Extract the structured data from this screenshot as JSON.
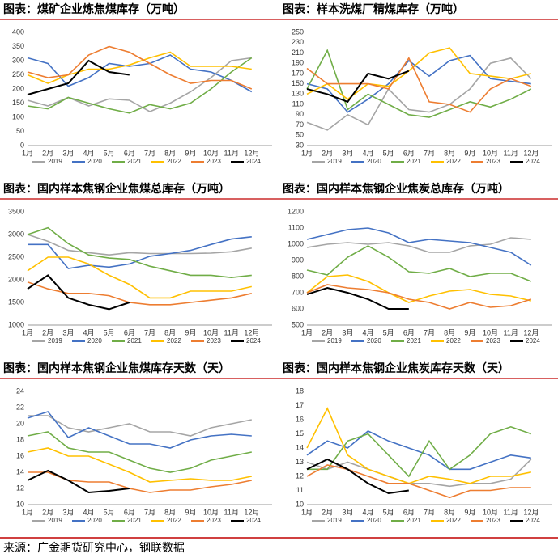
{
  "chart_data": [
    {
      "type": "line",
      "title": "图表：煤矿企业炼焦煤库存（万吨）",
      "categories": [
        "1月",
        "2月",
        "3月",
        "4月",
        "5月",
        "6月",
        "7月",
        "8月",
        "9月",
        "10月",
        "11月",
        "12月"
      ],
      "ylim": [
        0,
        400
      ],
      "yticks": [
        0,
        50,
        100,
        150,
        200,
        250,
        300,
        350,
        400
      ],
      "grid": false,
      "series": [
        {
          "name": "2019",
          "color": "#a5a5a5",
          "values": [
            160,
            140,
            170,
            140,
            165,
            160,
            120,
            150,
            190,
            240,
            300,
            310
          ]
        },
        {
          "name": "2020",
          "color": "#4472c4",
          "values": [
            310,
            290,
            210,
            240,
            290,
            280,
            290,
            320,
            270,
            260,
            230,
            190
          ]
        },
        {
          "name": "2021",
          "color": "#70ad47",
          "values": [
            140,
            130,
            170,
            150,
            130,
            115,
            145,
            130,
            150,
            200,
            260,
            310
          ]
        },
        {
          "name": "2022",
          "color": "#ffc000",
          "values": [
            250,
            220,
            250,
            270,
            270,
            285,
            310,
            330,
            280,
            280,
            280,
            270
          ]
        },
        {
          "name": "2023",
          "color": "#ed7d31",
          "values": [
            260,
            240,
            250,
            320,
            350,
            330,
            290,
            250,
            220,
            230,
            230,
            200
          ]
        },
        {
          "name": "2024",
          "color": "#000000",
          "values": [
            180,
            200,
            220,
            300,
            260,
            250,
            null,
            null,
            null,
            null,
            null,
            null
          ]
        }
      ]
    },
    {
      "type": "line",
      "title": "图表：样本洗煤厂精煤库存（万吨）",
      "categories": [
        "1月",
        "2月",
        "3月",
        "4月",
        "5月",
        "6月",
        "7月",
        "8月",
        "9月",
        "10月",
        "11月",
        "12月"
      ],
      "ylim": [
        30,
        250
      ],
      "yticks": [
        30,
        50,
        70,
        90,
        110,
        130,
        150,
        170,
        190,
        210,
        230,
        250
      ],
      "grid": false,
      "series": [
        {
          "name": "2019",
          "color": "#a5a5a5",
          "values": [
            75,
            60,
            90,
            70,
            140,
            100,
            95,
            110,
            140,
            190,
            200,
            160
          ]
        },
        {
          "name": "2020",
          "color": "#4472c4",
          "values": [
            150,
            140,
            95,
            120,
            150,
            195,
            165,
            195,
            205,
            160,
            155,
            150
          ]
        },
        {
          "name": "2021",
          "color": "#70ad47",
          "values": [
            140,
            215,
            100,
            130,
            110,
            90,
            85,
            100,
            115,
            105,
            120,
            140
          ]
        },
        {
          "name": "2022",
          "color": "#ffc000",
          "values": [
            130,
            150,
            120,
            150,
            145,
            175,
            210,
            220,
            170,
            165,
            160,
            170
          ]
        },
        {
          "name": "2023",
          "color": "#ed7d31",
          "values": [
            180,
            150,
            150,
            150,
            140,
            200,
            115,
            110,
            95,
            140,
            160,
            145
          ]
        },
        {
          "name": "2024",
          "color": "#000000",
          "values": [
            140,
            130,
            115,
            170,
            160,
            175,
            null,
            null,
            null,
            null,
            null,
            null
          ]
        }
      ]
    },
    {
      "type": "line",
      "title": "图表：国内样本焦钢企业焦煤总库存（万吨）",
      "categories": [
        "1月",
        "2月",
        "3月",
        "4月",
        "5月",
        "6月",
        "7月",
        "8月",
        "9月",
        "10月",
        "11月",
        "12月"
      ],
      "ylim": [
        1000,
        3500
      ],
      "yticks": [
        1000,
        1500,
        2000,
        2500,
        3000,
        3500
      ],
      "grid": false,
      "series": [
        {
          "name": "2019",
          "color": "#a5a5a5",
          "values": [
            3000,
            2850,
            2650,
            2600,
            2550,
            2600,
            2580,
            2580,
            2580,
            2590,
            2620,
            2700
          ]
        },
        {
          "name": "2020",
          "color": "#4472c4",
          "values": [
            2780,
            2780,
            2250,
            2320,
            2280,
            2350,
            2520,
            2580,
            2650,
            2780,
            2900,
            2950
          ]
        },
        {
          "name": "2021",
          "color": "#70ad47",
          "values": [
            3000,
            3150,
            2800,
            2550,
            2480,
            2450,
            2300,
            2200,
            2100,
            2100,
            2050,
            2100
          ]
        },
        {
          "name": "2022",
          "color": "#ffc000",
          "values": [
            2200,
            2500,
            2500,
            2350,
            2100,
            1900,
            1600,
            1600,
            1750,
            1750,
            1750,
            1850
          ]
        },
        {
          "name": "2023",
          "color": "#ed7d31",
          "values": [
            1950,
            1800,
            1700,
            1700,
            1650,
            1500,
            1450,
            1450,
            1500,
            1550,
            1600,
            1700
          ]
        },
        {
          "name": "2024",
          "color": "#000000",
          "values": [
            1800,
            2100,
            1600,
            1450,
            1350,
            1500,
            null,
            null,
            null,
            null,
            null,
            null
          ]
        }
      ]
    },
    {
      "type": "line",
      "title": "图表：国内样本焦钢企业焦炭总库存（万吨）",
      "categories": [
        "1月",
        "2月",
        "3月",
        "4月",
        "5月",
        "6月",
        "7月",
        "8月",
        "9月",
        "10月",
        "11月",
        "12月"
      ],
      "ylim": [
        500,
        1200
      ],
      "yticks": [
        500,
        600,
        700,
        800,
        900,
        1000,
        1100,
        1200
      ],
      "grid": false,
      "series": [
        {
          "name": "2019",
          "color": "#a5a5a5",
          "values": [
            980,
            1000,
            1010,
            1000,
            1010,
            990,
            950,
            950,
            990,
            1000,
            1040,
            1030
          ]
        },
        {
          "name": "2020",
          "color": "#4472c4",
          "values": [
            1030,
            1060,
            1090,
            1100,
            1070,
            1010,
            1030,
            1020,
            1010,
            980,
            950,
            870
          ]
        },
        {
          "name": "2021",
          "color": "#70ad47",
          "values": [
            840,
            810,
            920,
            990,
            920,
            830,
            820,
            850,
            800,
            820,
            820,
            770
          ]
        },
        {
          "name": "2022",
          "color": "#ffc000",
          "values": [
            700,
            800,
            810,
            770,
            700,
            640,
            680,
            710,
            720,
            690,
            680,
            650
          ]
        },
        {
          "name": "2023",
          "color": "#ed7d31",
          "values": [
            700,
            750,
            730,
            720,
            700,
            660,
            640,
            600,
            640,
            610,
            620,
            660
          ]
        },
        {
          "name": "2024",
          "color": "#000000",
          "values": [
            690,
            730,
            700,
            660,
            600,
            600,
            null,
            null,
            null,
            null,
            null,
            null
          ]
        }
      ]
    },
    {
      "type": "line",
      "title": "图表：国内样本焦钢企业焦煤库存天数（天）",
      "categories": [
        "1月",
        "2月",
        "3月",
        "4月",
        "5月",
        "6月",
        "7月",
        "8月",
        "9月",
        "10月",
        "11月",
        "12月"
      ],
      "ylim": [
        10,
        24
      ],
      "yticks": [
        10,
        12,
        14,
        16,
        18,
        20,
        22,
        24
      ],
      "grid": false,
      "series": [
        {
          "name": "2019",
          "color": "#a5a5a5",
          "values": [
            21,
            21,
            19.5,
            19,
            19.5,
            20,
            19,
            19,
            18.5,
            19.5,
            20,
            20.5
          ]
        },
        {
          "name": "2020",
          "color": "#4472c4",
          "values": [
            20.7,
            21.5,
            18.3,
            19.5,
            18.5,
            17.5,
            17.5,
            17,
            18,
            18.5,
            18.7,
            18.5
          ]
        },
        {
          "name": "2021",
          "color": "#70ad47",
          "values": [
            18.5,
            19,
            17,
            16.5,
            16.5,
            15.5,
            14.5,
            14,
            14.5,
            15.5,
            16,
            16.5
          ]
        },
        {
          "name": "2022",
          "color": "#ffc000",
          "values": [
            16.5,
            17,
            16,
            16,
            15,
            14,
            12.8,
            13,
            13.2,
            13,
            13,
            13.5
          ]
        },
        {
          "name": "2023",
          "color": "#ed7d31",
          "values": [
            14,
            14,
            13,
            12.8,
            12.8,
            12,
            11.5,
            11.8,
            11.8,
            12.2,
            12.5,
            13
          ]
        },
        {
          "name": "2024",
          "color": "#000000",
          "values": [
            13,
            14.2,
            13,
            11.5,
            11.7,
            12,
            null,
            null,
            null,
            null,
            null,
            null
          ]
        }
      ]
    },
    {
      "type": "line",
      "title": "图表：国内样本焦钢企业焦炭库存天数（天）",
      "categories": [
        "1月",
        "2月",
        "3月",
        "4月",
        "5月",
        "6月",
        "7月",
        "8月",
        "9月",
        "10月",
        "11月",
        "12月"
      ],
      "ylim": [
        10,
        18
      ],
      "yticks": [
        10,
        11,
        12,
        13,
        14,
        15,
        16,
        17,
        18
      ],
      "grid": false,
      "series": [
        {
          "name": "2019",
          "color": "#a5a5a5",
          "values": [
            13,
            12.5,
            13,
            12.5,
            12,
            11.5,
            11.5,
            11.3,
            11.5,
            11.5,
            11.8,
            13.2
          ]
        },
        {
          "name": "2020",
          "color": "#4472c4",
          "values": [
            13.5,
            14.5,
            14,
            15.2,
            14.5,
            14,
            13.5,
            12.5,
            12.5,
            13,
            13.5,
            13.3
          ]
        },
        {
          "name": "2021",
          "color": "#70ad47",
          "values": [
            12.5,
            12.5,
            14.5,
            15,
            13.5,
            12,
            14.5,
            12.5,
            13.5,
            15,
            15.5,
            15
          ]
        },
        {
          "name": "2022",
          "color": "#ffc000",
          "values": [
            14,
            16.8,
            13.5,
            12.5,
            12,
            11.5,
            12,
            11.8,
            11.5,
            12,
            12,
            12.3
          ]
        },
        {
          "name": "2023",
          "color": "#ed7d31",
          "values": [
            12,
            12.8,
            12.5,
            12,
            11.5,
            11.5,
            11,
            10.5,
            11,
            11,
            11.2,
            11.2
          ]
        },
        {
          "name": "2024",
          "color": "#000000",
          "values": [
            12.5,
            13.2,
            12.5,
            11.5,
            10.8,
            11,
            null,
            null,
            null,
            null,
            null,
            null
          ]
        }
      ]
    }
  ],
  "source": "来源：广金期货研究中心，钢联数据"
}
